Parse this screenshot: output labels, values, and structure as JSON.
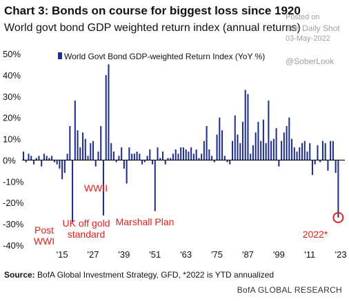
{
  "header": {
    "title": "Chart 3: Bonds on course for biggest loss since 1920",
    "subtitle": "World govt bond GDP weighted return index (annual returns)"
  },
  "watermark": {
    "posted_on": "Posted on",
    "publisher": "The Daily Shot",
    "date": "03-May-2022",
    "handle": "@SoberLook"
  },
  "footer": {
    "source_label": "Source:",
    "source_text": "BofA Global Investment Strategy, GFD, *2022  is YTD annualized",
    "brand": "BofA GLOBAL RESEARCH"
  },
  "colors": {
    "bar": "#1f2f8a",
    "annotation": "#e0201b",
    "axis": "#000000"
  },
  "chart_data": {
    "type": "bar",
    "legend": "World Govt Bond GDP-weighted Return Index (YoY %)",
    "legend_position": "top-left",
    "grid": false,
    "ylim": [
      -40,
      50
    ],
    "yticks": [
      -40,
      -30,
      -20,
      -10,
      0,
      10,
      20,
      30,
      40,
      50
    ],
    "ytick_labels": [
      "-40%",
      "-30%",
      "-20%",
      "-10%",
      "0%",
      "10%",
      "20%",
      "30%",
      "40%",
      "50%"
    ],
    "xticks": [
      1915,
      1927,
      1939,
      1951,
      1963,
      1975,
      1987,
      1999,
      2011,
      2023
    ],
    "xtick_labels": [
      "'15",
      "'27",
      "'39",
      "'51",
      "'63",
      "'75",
      "'87",
      "'99",
      "'11",
      "'23"
    ],
    "x": [
      1900,
      1901,
      1902,
      1903,
      1904,
      1905,
      1906,
      1907,
      1908,
      1909,
      1910,
      1911,
      1912,
      1913,
      1914,
      1915,
      1916,
      1917,
      1918,
      1919,
      1920,
      1921,
      1922,
      1923,
      1924,
      1925,
      1926,
      1927,
      1928,
      1929,
      1930,
      1931,
      1932,
      1933,
      1934,
      1935,
      1936,
      1937,
      1938,
      1939,
      1940,
      1941,
      1942,
      1943,
      1944,
      1945,
      1946,
      1947,
      1948,
      1949,
      1950,
      1951,
      1952,
      1953,
      1954,
      1955,
      1956,
      1957,
      1958,
      1959,
      1960,
      1961,
      1962,
      1963,
      1964,
      1965,
      1966,
      1967,
      1968,
      1969,
      1970,
      1971,
      1972,
      1973,
      1974,
      1975,
      1976,
      1977,
      1978,
      1979,
      1980,
      1981,
      1982,
      1983,
      1984,
      1985,
      1986,
      1987,
      1988,
      1989,
      1990,
      1991,
      1992,
      1993,
      1994,
      1995,
      1996,
      1997,
      1998,
      1999,
      2000,
      2001,
      2002,
      2003,
      2004,
      2005,
      2006,
      2007,
      2008,
      2009,
      2010,
      2011,
      2012,
      2013,
      2014,
      2015,
      2016,
      2017,
      2018,
      2019,
      2020,
      2021,
      2022
    ],
    "values": [
      4,
      -1,
      3,
      2,
      -2,
      1,
      2,
      -3,
      3,
      2,
      1,
      2,
      -1,
      -2,
      -4,
      -9,
      -6,
      3,
      16,
      -29,
      28,
      14,
      6,
      13,
      10,
      2,
      8,
      9,
      -3,
      4,
      16,
      -26,
      40,
      45,
      8,
      4,
      -1,
      2,
      6,
      -4,
      -11,
      6,
      3,
      3,
      4,
      3,
      -2,
      -1,
      2,
      5,
      -2,
      -24,
      6,
      1,
      4,
      -2,
      1,
      1,
      3,
      5,
      3,
      6,
      6,
      5,
      4,
      6,
      3,
      5,
      1,
      3,
      9,
      16,
      5,
      2,
      -1,
      12,
      20,
      14,
      2,
      -1,
      -2,
      9,
      21,
      12,
      8,
      18,
      33,
      31,
      3,
      7,
      13,
      18,
      9,
      19,
      8,
      28,
      9,
      10,
      15,
      -3,
      9,
      13,
      16,
      20,
      10,
      6,
      4,
      6,
      8,
      9,
      4,
      8,
      -7,
      -2,
      7,
      -1,
      9,
      8,
      -5,
      9,
      9,
      -6,
      -27
    ],
    "annotations": [
      {
        "label": "Post WWI",
        "lines": [
          "Post",
          "WWI"
        ],
        "year": 1919
      },
      {
        "label": "UK off gold standard",
        "lines": [
          "UK off gold",
          "standard"
        ],
        "year": 1931
      },
      {
        "label": "WWII",
        "lines": [
          "WWII"
        ],
        "year": 1940
      },
      {
        "label": "Marshall Plan",
        "lines": [
          "Marshall Plan"
        ],
        "year": 1951
      },
      {
        "label": "2022*",
        "lines": [
          "2022*"
        ],
        "year": 2022,
        "circled": true
      }
    ]
  }
}
